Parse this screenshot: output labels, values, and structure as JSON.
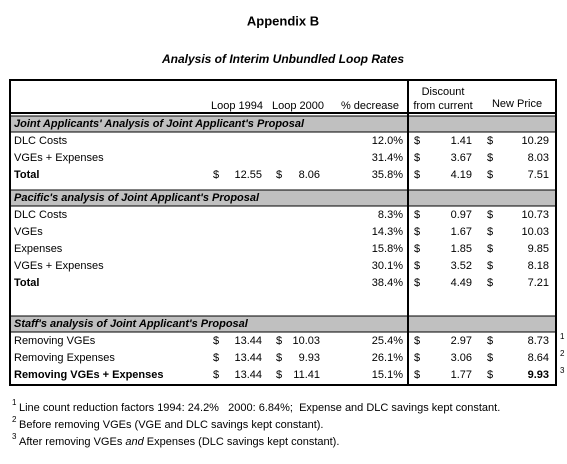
{
  "header": {
    "title": "Appendix B",
    "subtitle": "Analysis of Interim Unbundled Loop Rates"
  },
  "table": {
    "currency": "$",
    "columns": {
      "loop_1994": "Loop 1994",
      "loop_2000": "Loop 2000",
      "pct_decrease": "% decrease",
      "discount": [
        "Discount",
        "from current"
      ],
      "new_price": "New Price"
    },
    "sections": [
      {
        "title": "Joint Applicants' Analysis of Joint Applicant's Proposal",
        "rows": [
          {
            "label": "DLC Costs",
            "pct_decrease": "12.0%",
            "discount": "1.41",
            "new_price": "10.29"
          },
          {
            "label": "VGEs + Expenses",
            "pct_decrease": "31.4%",
            "discount": "3.67",
            "new_price": "8.03"
          },
          {
            "label": "Total",
            "loop_1994": "12.55",
            "loop_2000": "8.06",
            "pct_decrease": "35.8%",
            "discount": "4.19",
            "new_price": "7.51",
            "bold": [
              "label"
            ]
          }
        ]
      },
      {
        "title": "Pacific's analysis of Joint Applicant's Proposal",
        "rows": [
          {
            "label": "DLC Costs",
            "pct_decrease": "8.3%",
            "discount": "0.97",
            "new_price": "10.73"
          },
          {
            "label": "VGEs",
            "pct_decrease": "14.3%",
            "discount": "1.67",
            "new_price": "10.03"
          },
          {
            "label": "Expenses",
            "pct_decrease": "15.8%",
            "discount": "1.85",
            "new_price": "9.85"
          },
          {
            "label": "VGEs + Expenses",
            "pct_decrease": "30.1%",
            "discount": "3.52",
            "new_price": "8.18"
          },
          {
            "label": "Total",
            "pct_decrease": "38.4%",
            "discount": "4.49",
            "new_price": "7.21",
            "bold": [
              "label"
            ]
          }
        ]
      },
      {
        "title": "Staff's analysis of Joint Applicant's Proposal",
        "rows": [
          {
            "label": "Removing VGEs",
            "loop_1994": "13.44",
            "loop_2000": "10.03",
            "pct_decrease": "25.4%",
            "discount": "2.97",
            "new_price": "8.73",
            "note": "1"
          },
          {
            "label": "Removing Expenses",
            "loop_1994": "13.44",
            "loop_2000": "9.93",
            "pct_decrease": "26.1%",
            "discount": "3.06",
            "new_price": "8.64",
            "note": "2"
          },
          {
            "label": "Removing VGEs + Expenses",
            "loop_1994": "13.44",
            "loop_2000": "11.41",
            "pct_decrease": "15.1%",
            "discount": "1.77",
            "new_price": "9.93",
            "note": "3",
            "bold": [
              "label",
              "new_price"
            ]
          }
        ]
      }
    ]
  },
  "footnotes": [
    {
      "marker": "1",
      "parts": [
        "Line count reduction factors 1994: 24.2%   2000: 6.84%;  Expense and DLC savings kept constant."
      ]
    },
    {
      "marker": "2",
      "parts": [
        "Before removing VGEs (VGE and DLC savings kept constant)."
      ]
    },
    {
      "marker": "3",
      "parts": [
        "After removing VGEs ",
        "and",
        " Expenses (DLC savings kept constant)."
      ],
      "italic_part": 1
    }
  ]
}
